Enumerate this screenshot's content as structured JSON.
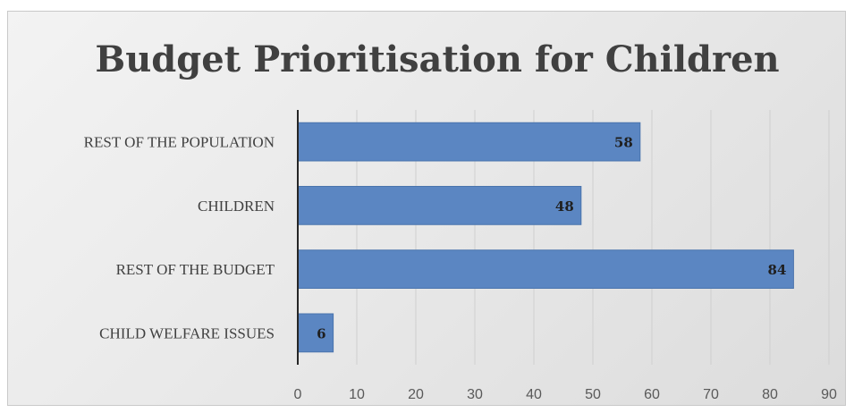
{
  "chart_data": {
    "type": "bar",
    "orientation": "horizontal",
    "title": "Budget Prioritisation for Children",
    "categories": [
      "REST OF THE POPULATION",
      "CHILDREN",
      "REST OF THE BUDGET",
      "CHILD WELFARE ISSUES"
    ],
    "values": [
      58,
      48,
      84,
      6
    ],
    "xlim": [
      0,
      90
    ],
    "xticks": [
      0,
      10,
      20,
      30,
      40,
      50,
      60,
      70,
      80,
      90
    ],
    "grid": true,
    "legend": "none",
    "bar_color": "#5b86c2"
  }
}
